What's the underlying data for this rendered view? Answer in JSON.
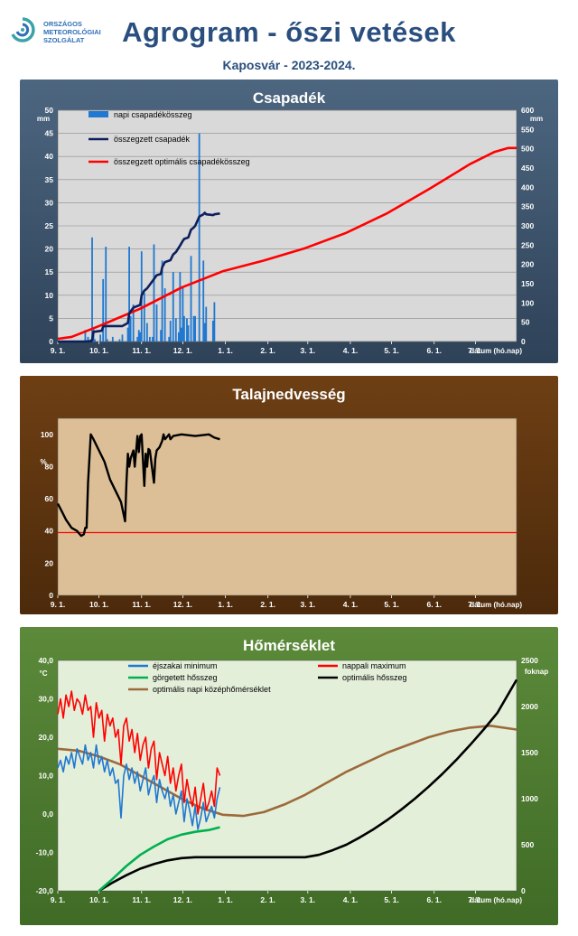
{
  "header": {
    "logo_lines": [
      "ORSZÁGOS",
      "METEOROLÓGIAI",
      "SZOLGÁLAT"
    ],
    "title": "Agrogram - őszi vetések",
    "subtitle": "Kaposvár  - 2023-2024."
  },
  "colors": {
    "precip_bar": "#1f78d1",
    "precip_sum": "#0d1f5c",
    "precip_optimal": "#ff0000",
    "soil_line": "#000000",
    "soil_threshold": "#ff0000",
    "tmin": "#1f78d1",
    "tmax": "#ff0000",
    "rolling_heat": "#00b050",
    "optimal_heat": "#000000",
    "optimal_mean_temp": "#9c6a3a"
  },
  "chart_data": [
    {
      "type": "bar",
      "title": "Csapadék",
      "ylabel": "mm",
      "y2label": "mm",
      "xlabel": "dátum (hó.nap)",
      "x_ticks": [
        "9. 1.",
        "10. 1.",
        "11. 1.",
        "12. 1.",
        "1. 1.",
        "2. 1.",
        "3. 1.",
        "4. 1.",
        "5. 1.",
        "6. 1.",
        "7. 1."
      ],
      "x_range_days": [
        0,
        334
      ],
      "ylim": [
        0,
        50
      ],
      "y_ticks": [
        0,
        5,
        10,
        15,
        20,
        25,
        30,
        35,
        40,
        45,
        50
      ],
      "y2lim": [
        0,
        600
      ],
      "y2_ticks": [
        0,
        50,
        100,
        150,
        200,
        250,
        300,
        350,
        400,
        450,
        500,
        550,
        600
      ],
      "grid": true,
      "legend_position": "top-left",
      "series": [
        {
          "name": "napi csapadékösszeg",
          "axis": "left",
          "x": [
            20,
            22,
            24,
            25,
            26,
            27,
            31,
            33,
            35,
            36,
            40,
            45,
            47,
            51,
            52,
            53,
            55,
            58,
            59,
            60,
            61,
            63,
            65,
            67,
            69,
            70,
            72,
            75,
            76,
            78,
            81,
            82,
            84,
            86,
            88,
            89,
            90,
            91,
            92,
            94,
            95,
            97,
            99,
            100,
            103,
            106,
            107,
            108,
            113,
            114
          ],
          "values": [
            2.5,
            1.0,
            0.5,
            22.5,
            3.0,
            0.5,
            1.5,
            13.5,
            20.5,
            0.5,
            1.0,
            0.5,
            1.5,
            3.0,
            20.5,
            5.5,
            8.0,
            1.0,
            2.5,
            2.0,
            19.5,
            10.5,
            4.0,
            1.0,
            1.0,
            21.0,
            8.0,
            2.5,
            17.5,
            11.5,
            1.0,
            4.5,
            15.0,
            5.0,
            2.0,
            15.0,
            3.0,
            12.0,
            5.5,
            5.0,
            3.5,
            18.5,
            5.5,
            5.5,
            45.0,
            17.5,
            4.0,
            7.5,
            4.5,
            8.5
          ]
        },
        {
          "name": "összegzett csapadék",
          "axis": "right",
          "x": [
            0,
            20,
            24,
            25,
            26,
            32,
            33,
            35,
            36,
            47,
            51,
            52,
            53,
            55,
            58,
            60,
            61,
            63,
            65,
            70,
            72,
            75,
            76,
            78,
            82,
            84,
            86,
            89,
            91,
            92,
            95,
            97,
            99,
            100,
            103,
            106,
            107,
            108,
            113,
            114,
            118
          ],
          "values": [
            0,
            0,
            1,
            3,
            25,
            28,
            39,
            40,
            40,
            40,
            48,
            73,
            78,
            88,
            92,
            95,
            120,
            132,
            138,
            162,
            172,
            175,
            193,
            206,
            211,
            226,
            232,
            249,
            261,
            266,
            270,
            290,
            296,
            300,
            324,
            330,
            334,
            330,
            328,
            330,
            332
          ]
        },
        {
          "name": "összegzett optimális csapadékösszeg",
          "axis": "right",
          "x": [
            0,
            10,
            30,
            60,
            90,
            120,
            150,
            180,
            210,
            240,
            270,
            300,
            318,
            328,
            334
          ],
          "values": [
            7,
            12,
            40,
            85,
            140,
            182,
            210,
            242,
            282,
            333,
            395,
            460,
            492,
            502,
            502
          ]
        }
      ]
    },
    {
      "type": "line",
      "title": "Talajnedvesség",
      "ylabel": "%",
      "xlabel": "dátum (hó.nap)",
      "x_ticks": [
        "9. 1.",
        "10. 1.",
        "11. 1.",
        "12. 1.",
        "1. 1.",
        "2. 1.",
        "3. 1.",
        "4. 1.",
        "5. 1.",
        "6. 1.",
        "7. 1."
      ],
      "x_range_days": [
        0,
        334
      ],
      "ylim": [
        0,
        110
      ],
      "y_ticks": [
        0,
        20,
        40,
        60,
        80,
        100
      ],
      "grid": false,
      "series": [
        {
          "x": [
            0,
            3,
            6,
            10,
            14,
            17,
            19,
            20,
            21,
            22,
            24,
            26,
            30,
            34,
            38,
            42,
            46,
            48,
            49,
            50,
            51,
            52,
            53,
            55,
            56,
            58,
            59,
            60,
            61,
            63,
            64,
            65,
            66,
            67,
            70,
            71,
            72,
            74,
            76,
            77,
            78,
            79,
            81,
            82,
            84,
            90,
            100,
            110,
            114,
            118
          ],
          "values": [
            57,
            52,
            47,
            42,
            40,
            37,
            38,
            42,
            42,
            70,
            100,
            97,
            90,
            83,
            72,
            65,
            58,
            50,
            46,
            70,
            88,
            80,
            85,
            90,
            80,
            99,
            89,
            99,
            100,
            68,
            88,
            80,
            91,
            90,
            70,
            85,
            90,
            92,
            96,
            100,
            97,
            98,
            100,
            97,
            99,
            100,
            99,
            100,
            98,
            97
          ]
        },
        {
          "x": [
            0,
            334
          ],
          "values": [
            39,
            39
          ]
        }
      ]
    },
    {
      "type": "line",
      "title": "Hőmérséklet",
      "ylabel": "°C",
      "y2label": "foknap",
      "xlabel": "dátum (hó.nap)",
      "x_ticks": [
        "9. 1.",
        "10. 1.",
        "11. 1.",
        "12. 1.",
        "1. 1.",
        "2. 1.",
        "3. 1.",
        "4. 1.",
        "5. 1.",
        "6. 1.",
        "7. 1."
      ],
      "x_range_days": [
        0,
        334
      ],
      "ylim": [
        -20,
        40
      ],
      "y_ticks": [
        -20,
        -10,
        0,
        10,
        20,
        30,
        40
      ],
      "y_tick_labels": [
        "-20,0",
        "-10,0",
        "0,0",
        "10,0",
        "20,0",
        "30,0",
        "40,0"
      ],
      "y2lim": [
        0,
        2500
      ],
      "y2_ticks": [
        0,
        500,
        1000,
        1500,
        2000,
        2500
      ],
      "grid": false,
      "legend_position": "top",
      "series": [
        {
          "name": "éjszakai minimum",
          "axis": "left",
          "x": [
            0,
            2,
            4,
            6,
            8,
            10,
            12,
            14,
            16,
            18,
            20,
            22,
            24,
            26,
            28,
            30,
            32,
            34,
            36,
            38,
            40,
            42,
            44,
            46,
            48,
            50,
            52,
            54,
            56,
            58,
            60,
            62,
            64,
            66,
            68,
            70,
            72,
            74,
            76,
            78,
            80,
            82,
            84,
            86,
            88,
            90,
            92,
            94,
            96,
            98,
            100,
            102,
            104,
            106,
            108,
            110,
            112,
            114,
            116,
            118
          ],
          "values": [
            12,
            14,
            11,
            15,
            13,
            16,
            12,
            17,
            15,
            13,
            18,
            14,
            16,
            12,
            18,
            13,
            15,
            11,
            14,
            10,
            12,
            8,
            9,
            -1,
            10,
            13,
            9,
            12,
            8,
            11,
            6,
            9,
            12,
            5,
            8,
            10,
            3,
            9,
            6,
            4,
            7,
            2,
            5,
            0,
            3,
            6,
            -2,
            4,
            1,
            -3,
            2,
            -4,
            -1,
            3,
            -2,
            0,
            2,
            -1,
            4,
            7
          ]
        },
        {
          "name": "nappali maximum",
          "axis": "left",
          "x": [
            0,
            2,
            4,
            6,
            8,
            10,
            12,
            14,
            16,
            18,
            20,
            22,
            24,
            26,
            28,
            30,
            32,
            34,
            36,
            38,
            40,
            42,
            44,
            46,
            48,
            50,
            52,
            54,
            56,
            58,
            60,
            62,
            64,
            66,
            68,
            70,
            72,
            74,
            76,
            78,
            80,
            82,
            84,
            86,
            88,
            90,
            92,
            94,
            96,
            98,
            100,
            102,
            104,
            106,
            108,
            110,
            112,
            114,
            116,
            118
          ],
          "values": [
            26,
            30,
            25,
            31,
            28,
            32,
            27,
            30,
            29,
            26,
            31,
            27,
            28,
            20,
            29,
            25,
            27,
            19,
            26,
            23,
            25,
            20,
            22,
            13,
            23,
            25,
            19,
            22,
            16,
            21,
            14,
            18,
            20,
            12,
            17,
            19,
            9,
            16,
            13,
            10,
            15,
            8,
            12,
            6,
            10,
            13,
            3,
            9,
            5,
            2,
            7,
            0,
            4,
            8,
            1,
            3,
            6,
            2,
            12,
            10
          ]
        },
        {
          "name": "görgetett hősszeg",
          "axis": "right",
          "x": [
            30,
            40,
            50,
            60,
            70,
            80,
            90,
            100,
            110,
            118
          ],
          "values": [
            0,
            130,
            270,
            390,
            480,
            560,
            610,
            640,
            660,
            690
          ]
        },
        {
          "name": "optimális hősszeg",
          "axis": "right",
          "x": [
            30,
            40,
            50,
            60,
            70,
            80,
            90,
            100,
            110,
            120,
            140,
            160,
            180,
            190,
            200,
            210,
            220,
            230,
            240,
            250,
            260,
            270,
            280,
            290,
            300,
            310,
            320,
            334
          ],
          "values": [
            0,
            90,
            170,
            240,
            290,
            330,
            355,
            365,
            365,
            365,
            365,
            365,
            365,
            390,
            440,
            500,
            580,
            670,
            770,
            880,
            1000,
            1130,
            1270,
            1420,
            1580,
            1750,
            1930,
            2290
          ]
        },
        {
          "name": "optimális napi középhőmérséklet",
          "axis": "left",
          "x": [
            0,
            15,
            30,
            45,
            60,
            75,
            90,
            105,
            120,
            135,
            150,
            165,
            180,
            195,
            210,
            225,
            240,
            255,
            270,
            285,
            300,
            315,
            334
          ],
          "values": [
            17,
            16.5,
            15,
            13,
            10,
            7,
            4,
            1.5,
            -0.2,
            -0.5,
            0.5,
            2.5,
            5,
            8,
            11,
            13.5,
            16,
            18,
            20,
            21.5,
            22.5,
            23,
            22
          ]
        }
      ]
    }
  ]
}
